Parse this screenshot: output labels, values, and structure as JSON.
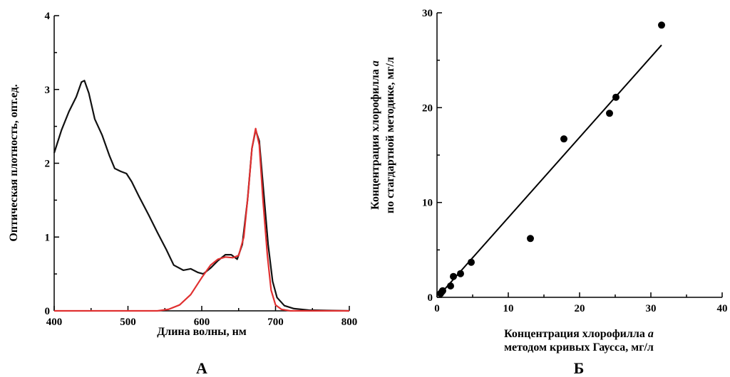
{
  "chart_data": [
    {
      "type": "line",
      "panel_label": "А",
      "xlabel": "Длина волны, нм",
      "ylabel": "Оптическая плотность, опт.ед.",
      "xlim": [
        400,
        800
      ],
      "ylim": [
        0,
        4
      ],
      "x_ticks": [
        "400",
        "500",
        "600",
        "700",
        "800"
      ],
      "y_ticks": [
        "0",
        "1",
        "2",
        "3",
        "4"
      ],
      "series": [
        {
          "color": "#111111",
          "points": [
            [
              400,
              2.14
            ],
            [
              410,
              2.45
            ],
            [
              420,
              2.7
            ],
            [
              430,
              2.9
            ],
            [
              437,
              3.1
            ],
            [
              441,
              3.12
            ],
            [
              447,
              2.95
            ],
            [
              455,
              2.6
            ],
            [
              465,
              2.38
            ],
            [
              475,
              2.1
            ],
            [
              482,
              1.93
            ],
            [
              490,
              1.89
            ],
            [
              498,
              1.86
            ],
            [
              505,
              1.75
            ],
            [
              515,
              1.55
            ],
            [
              528,
              1.3
            ],
            [
              540,
              1.06
            ],
            [
              552,
              0.83
            ],
            [
              562,
              0.62
            ],
            [
              575,
              0.55
            ],
            [
              585,
              0.57
            ],
            [
              595,
              0.52
            ],
            [
              602,
              0.5
            ],
            [
              612,
              0.58
            ],
            [
              622,
              0.68
            ],
            [
              632,
              0.76
            ],
            [
              640,
              0.76
            ],
            [
              648,
              0.7
            ],
            [
              655,
              0.9
            ],
            [
              662,
              1.5
            ],
            [
              668,
              2.2
            ],
            [
              673,
              2.45
            ],
            [
              678,
              2.3
            ],
            [
              684,
              1.6
            ],
            [
              690,
              0.9
            ],
            [
              696,
              0.4
            ],
            [
              702,
              0.18
            ],
            [
              712,
              0.07
            ],
            [
              725,
              0.03
            ],
            [
              745,
              0.01
            ],
            [
              770,
              0.005
            ],
            [
              800,
              0.0
            ]
          ]
        },
        {
          "color": "#e03030",
          "points": [
            [
              400,
              0.0
            ],
            [
              540,
              0.0
            ],
            [
              555,
              0.02
            ],
            [
              570,
              0.08
            ],
            [
              585,
              0.22
            ],
            [
              600,
              0.45
            ],
            [
              612,
              0.62
            ],
            [
              622,
              0.7
            ],
            [
              632,
              0.73
            ],
            [
              642,
              0.72
            ],
            [
              650,
              0.75
            ],
            [
              657,
              1.0
            ],
            [
              663,
              1.6
            ],
            [
              668,
              2.2
            ],
            [
              673,
              2.47
            ],
            [
              678,
              2.25
            ],
            [
              683,
              1.5
            ],
            [
              689,
              0.75
            ],
            [
              694,
              0.28
            ],
            [
              700,
              0.08
            ],
            [
              708,
              0.02
            ],
            [
              720,
              0.0
            ],
            [
              800,
              0.0
            ]
          ]
        }
      ]
    },
    {
      "type": "scatter",
      "panel_label": "Б",
      "xlabel_line1": "Концентрация хлорофилла",
      "xlabel_line2": "методом кривых Гаусса, мг/л",
      "ylabel_line1": "Концентрация хлорофилла",
      "ylabel_line2": "по стагдартной методике, мг/л",
      "italic_symbol": "a",
      "xlim": [
        0,
        40
      ],
      "ylim": [
        0,
        30
      ],
      "x_ticks": [
        "0",
        "10",
        "20",
        "30",
        "40"
      ],
      "y_ticks": [
        "0",
        "10",
        "20",
        "30"
      ],
      "points": [
        [
          0.5,
          0.4
        ],
        [
          0.7,
          0.6
        ],
        [
          0.8,
          0.7
        ],
        [
          1.9,
          1.2
        ],
        [
          2.3,
          2.2
        ],
        [
          3.3,
          2.5
        ],
        [
          4.8,
          3.7
        ],
        [
          13.1,
          6.2
        ],
        [
          17.8,
          16.7
        ],
        [
          24.2,
          19.4
        ],
        [
          25.1,
          21.1
        ],
        [
          31.5,
          28.7
        ]
      ],
      "fit_line": [
        [
          0.3,
          0.2
        ],
        [
          31.5,
          26.6
        ]
      ]
    }
  ]
}
